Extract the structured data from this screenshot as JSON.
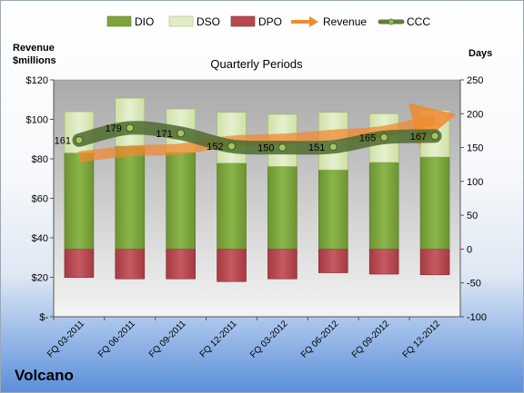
{
  "company": "Volcano",
  "chart_data": {
    "type": "bar",
    "title": "Quarterly Periods",
    "categories": [
      "FQ 03-2011",
      "FQ 06-2011",
      "FQ 09-2011",
      "FQ 12-2011",
      "FQ 03-2012",
      "FQ 06-2012",
      "FQ 09-2012",
      "FQ 12-2012"
    ],
    "left_axis": {
      "label_line1": "Revenue",
      "label_line2": "$millions",
      "min": 0,
      "max": 120,
      "step": 20,
      "ticks": [
        "$-",
        "$20",
        "$40",
        "$60",
        "$80",
        "$100",
        "$120"
      ]
    },
    "right_axis": {
      "label": "Days",
      "min": -100,
      "max": 250,
      "step": 50,
      "ticks": [
        "-100",
        "-50",
        "0",
        "50",
        "100",
        "150",
        "200",
        "250"
      ]
    },
    "legend": [
      "DIO",
      "DSO",
      "DPO",
      "Revenue",
      "CCC"
    ],
    "series": [
      {
        "name": "DIO",
        "axis": "right",
        "values": [
          142,
          152,
          143,
          127,
          122,
          117,
          128,
          136
        ],
        "color": "#7fa33c"
      },
      {
        "name": "DSO",
        "axis": "right",
        "values": [
          61,
          71,
          64,
          75,
          77,
          85,
          72,
          69
        ],
        "color": "#d6e6b2"
      },
      {
        "name": "DPO",
        "axis": "right",
        "values": [
          -42,
          -44,
          -44,
          -48,
          -44,
          -35,
          -37,
          -38
        ],
        "color": "#b84750"
      },
      {
        "name": "Revenue",
        "axis": "left",
        "values": [
          81,
          84,
          85,
          89,
          90,
          92,
          94,
          100
        ],
        "color": "#f08a30"
      },
      {
        "name": "CCC",
        "axis": "right",
        "values": [
          161,
          179,
          171,
          152,
          150,
          151,
          165,
          167
        ],
        "color": "#5f7f3a"
      }
    ],
    "ccc_labels": [
      "161",
      "179",
      "171",
      "152",
      "150",
      "151",
      "165",
      "167"
    ],
    "grid": false,
    "legend_position": "top"
  }
}
